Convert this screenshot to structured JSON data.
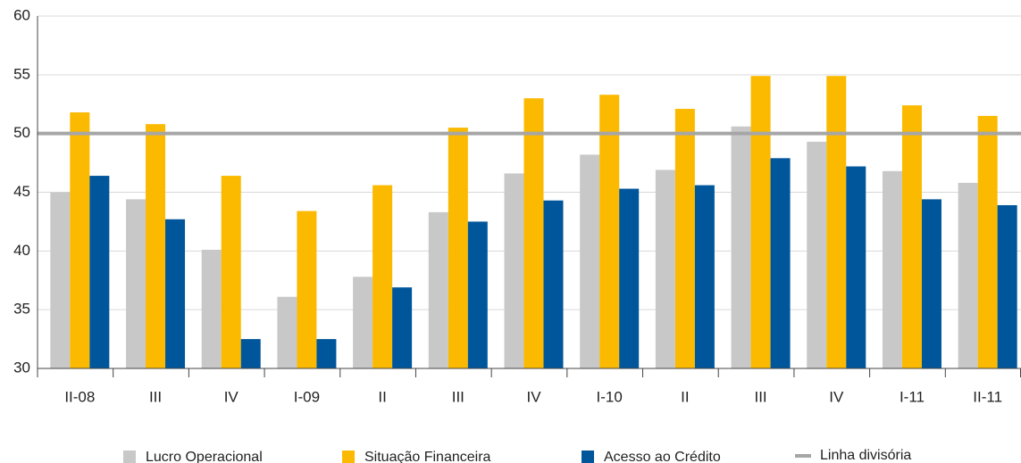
{
  "chart_data": {
    "type": "bar",
    "categories": [
      "II-08",
      "III",
      "IV",
      "I-09",
      "II",
      "III",
      "IV",
      "I-10",
      "II",
      "III",
      "IV",
      "I-11",
      "II-11"
    ],
    "series": [
      {
        "name": "Lucro Operacional",
        "color": "#c8c8c8",
        "values": [
          45.0,
          44.4,
          40.1,
          36.1,
          37.8,
          43.3,
          46.6,
          48.2,
          46.9,
          50.6,
          49.3,
          46.8,
          45.8
        ]
      },
      {
        "name": "Situação Financeira",
        "color": "#fbb900",
        "values": [
          51.8,
          50.8,
          46.4,
          43.4,
          45.6,
          50.5,
          53.0,
          53.3,
          52.1,
          54.9,
          54.9,
          52.4,
          51.5
        ]
      },
      {
        "name": "Acesso ao Crédito",
        "color": "#00569b",
        "values": [
          46.4,
          42.7,
          32.5,
          32.5,
          36.9,
          42.5,
          44.3,
          45.3,
          45.6,
          47.9,
          47.2,
          44.4,
          43.9
        ]
      }
    ],
    "reference_line": {
      "name": "Linha divisória",
      "value": 50,
      "color": "#a6a6a6"
    },
    "ylim": [
      30,
      60
    ],
    "yticks": [
      30,
      35,
      40,
      45,
      50,
      55,
      60
    ],
    "grid": true,
    "legend": "bottom"
  }
}
